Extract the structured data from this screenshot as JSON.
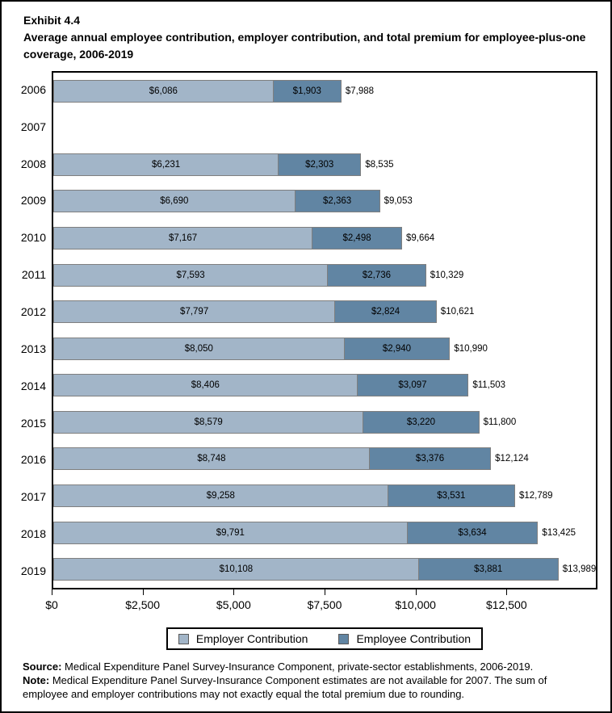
{
  "header": {
    "exhibit": "Exhibit 4.4",
    "title": "Average annual employee contribution, employer contribution, and total premium for employee-plus-one coverage, 2006-2019"
  },
  "legend": {
    "employer": "Employer Contribution",
    "employee": "Employee Contribution"
  },
  "footer": {
    "source_label": "Source:",
    "source_text": " Medical Expenditure Panel Survey-Insurance Component, private-sector establishments, 2006-2019.",
    "note_label": "Note:",
    "note_text": " Medical Expenditure Panel Survey-Insurance Component estimates are not available for 2007. The sum of employee and employer contributions may not exactly equal the total premium due to rounding."
  },
  "colors": {
    "employer": "#A2B5C8",
    "employee": "#6185A3",
    "bar_border": "#7F7F7F"
  },
  "chart_data": {
    "type": "bar",
    "orientation": "horizontal",
    "stacked": true,
    "title": "Average annual employee contribution, employer contribution, and total premium for employee-plus-one coverage, 2006-2019",
    "xlabel": "",
    "ylabel": "",
    "axis_max": 15000,
    "grid": false,
    "legend_position": "bottom",
    "series_names": [
      "Employer Contribution",
      "Employee Contribution"
    ],
    "x_ticks": [
      {
        "value": 0,
        "label": "$0"
      },
      {
        "value": 2500,
        "label": "$2,500"
      },
      {
        "value": 5000,
        "label": "$5,000"
      },
      {
        "value": 7500,
        "label": "$7,500"
      },
      {
        "value": 10000,
        "label": "$10,000"
      },
      {
        "value": 12500,
        "label": "$12,500"
      }
    ],
    "rows": [
      {
        "year": "2006",
        "employer": 6086,
        "employee": 1903,
        "total": 7988,
        "employer_label": "$6,086",
        "employee_label": "$1,903",
        "total_label": "$7,988"
      },
      {
        "year": "2007",
        "employer": null,
        "employee": null,
        "total": null,
        "employer_label": "",
        "employee_label": "",
        "total_label": ""
      },
      {
        "year": "2008",
        "employer": 6231,
        "employee": 2303,
        "total": 8535,
        "employer_label": "$6,231",
        "employee_label": "$2,303",
        "total_label": "$8,535"
      },
      {
        "year": "2009",
        "employer": 6690,
        "employee": 2363,
        "total": 9053,
        "employer_label": "$6,690",
        "employee_label": "$2,363",
        "total_label": "$9,053"
      },
      {
        "year": "2010",
        "employer": 7167,
        "employee": 2498,
        "total": 9664,
        "employer_label": "$7,167",
        "employee_label": "$2,498",
        "total_label": "$9,664"
      },
      {
        "year": "2011",
        "employer": 7593,
        "employee": 2736,
        "total": 10329,
        "employer_label": "$7,593",
        "employee_label": "$2,736",
        "total_label": "$10,329"
      },
      {
        "year": "2012",
        "employer": 7797,
        "employee": 2824,
        "total": 10621,
        "employer_label": "$7,797",
        "employee_label": "$2,824",
        "total_label": "$10,621"
      },
      {
        "year": "2013",
        "employer": 8050,
        "employee": 2940,
        "total": 10990,
        "employer_label": "$8,050",
        "employee_label": "$2,940",
        "total_label": "$10,990"
      },
      {
        "year": "2014",
        "employer": 8406,
        "employee": 3097,
        "total": 11503,
        "employer_label": "$8,406",
        "employee_label": "$3,097",
        "total_label": "$11,503"
      },
      {
        "year": "2015",
        "employer": 8579,
        "employee": 3220,
        "total": 11800,
        "employer_label": "$8,579",
        "employee_label": "$3,220",
        "total_label": "$11,800"
      },
      {
        "year": "2016",
        "employer": 8748,
        "employee": 3376,
        "total": 12124,
        "employer_label": "$8,748",
        "employee_label": "$3,376",
        "total_label": "$12,124"
      },
      {
        "year": "2017",
        "employer": 9258,
        "employee": 3531,
        "total": 12789,
        "employer_label": "$9,258",
        "employee_label": "$3,531",
        "total_label": "$12,789"
      },
      {
        "year": "2018",
        "employer": 9791,
        "employee": 3634,
        "total": 13425,
        "employer_label": "$9,791",
        "employee_label": "$3,634",
        "total_label": "$13,425"
      },
      {
        "year": "2019",
        "employer": 10108,
        "employee": 3881,
        "total": 13989,
        "employer_label": "$10,108",
        "employee_label": "$3,881",
        "total_label": "$13,989"
      }
    ]
  }
}
